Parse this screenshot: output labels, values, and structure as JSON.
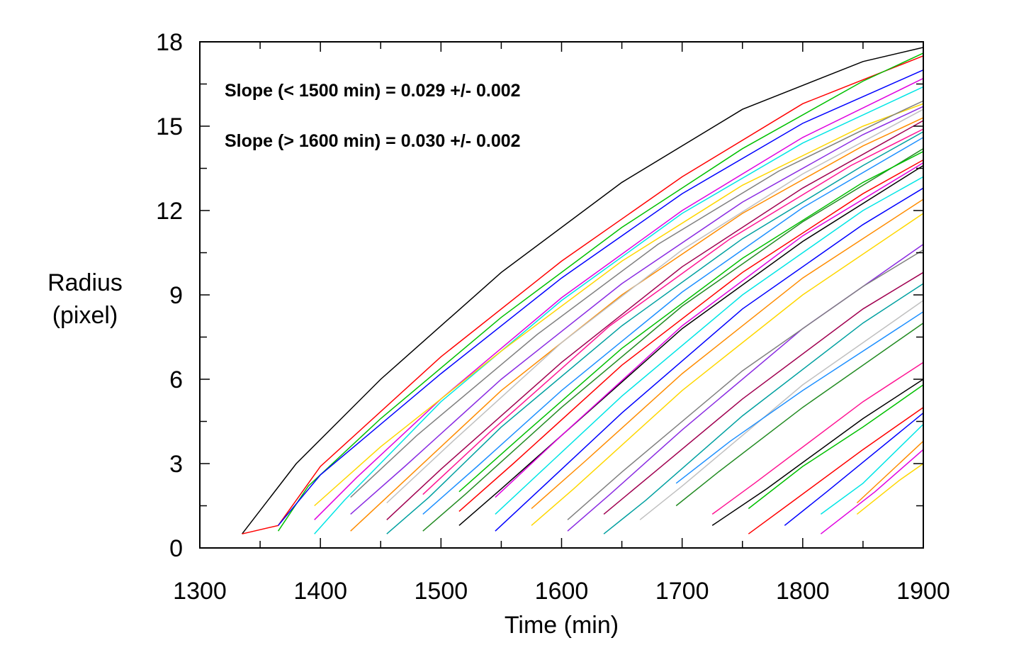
{
  "chart_data": {
    "type": "line",
    "title": "",
    "xlabel": "Time (min)",
    "ylabel_lines": [
      "Radius",
      "(pixel)"
    ],
    "xlim": [
      1300,
      1900
    ],
    "ylim": [
      0,
      18
    ],
    "x_ticks": [
      1300,
      1400,
      1500,
      1600,
      1700,
      1800,
      1900
    ],
    "y_ticks": [
      0,
      3,
      6,
      9,
      12,
      15,
      18
    ],
    "x_minor_step": 50,
    "y_minor_step": 1.5,
    "grid": false,
    "legend": "none",
    "annotations": [
      "Slope (< 1500 min) = 0.029 +/- 0.002",
      "Slope (> 1600 min) = 0.030 +/- 0.002"
    ],
    "palette": [
      "#000000",
      "#ff0000",
      "#00c000",
      "#0000ff",
      "#00e5e5",
      "#e000e0",
      "#ffd700",
      "#ff8c00",
      "#8a2be2",
      "#808080",
      "#00a0a0",
      "#a00050",
      "#c0c0c0",
      "#228b22",
      "#1e90ff",
      "#ff1493"
    ],
    "series_count_note": "",
    "series": [
      {
        "x": [
          1335,
          1380,
          1450,
          1550,
          1650,
          1750,
          1850,
          1900
        ],
        "y": [
          0.5,
          3.0,
          6.0,
          9.8,
          13.0,
          15.6,
          17.3,
          17.8
        ]
      },
      {
        "x": [
          1335,
          1365,
          1400,
          1500,
          1600,
          1700,
          1800,
          1900
        ],
        "y": [
          0.5,
          0.8,
          2.9,
          6.8,
          10.2,
          13.2,
          15.8,
          17.5
        ]
      },
      {
        "x": [
          1365,
          1390,
          1450,
          1550,
          1650,
          1750,
          1850,
          1900
        ],
        "y": [
          0.6,
          2.2,
          4.6,
          8.2,
          11.4,
          14.2,
          16.6,
          17.6
        ]
      },
      {
        "x": [
          1365,
          1400,
          1500,
          1600,
          1700,
          1800,
          1900
        ],
        "y": [
          0.8,
          2.6,
          6.2,
          9.6,
          12.6,
          15.1,
          17.0
        ]
      },
      {
        "x": [
          1395,
          1420,
          1500,
          1600,
          1700,
          1800,
          1900
        ],
        "y": [
          0.5,
          1.7,
          5.2,
          8.8,
          11.9,
          14.4,
          16.4
        ]
      },
      {
        "x": [
          1395,
          1430,
          1500,
          1600,
          1700,
          1800,
          1900
        ],
        "y": [
          1.0,
          2.5,
          5.3,
          8.9,
          12.0,
          14.6,
          16.7
        ]
      },
      {
        "x": [
          1395,
          1450,
          1550,
          1650,
          1750,
          1850,
          1900
        ],
        "y": [
          1.5,
          3.6,
          7.0,
          10.2,
          12.9,
          15.0,
          15.8
        ]
      },
      {
        "x": [
          1425,
          1460,
          1550,
          1650,
          1750,
          1850,
          1900
        ],
        "y": [
          0.6,
          2.0,
          5.6,
          9.0,
          11.9,
          14.3,
          15.3
        ]
      },
      {
        "x": [
          1425,
          1470,
          1550,
          1650,
          1750,
          1850,
          1900
        ],
        "y": [
          1.2,
          2.9,
          6.0,
          9.4,
          12.3,
          14.7,
          15.7
        ]
      },
      {
        "x": [
          1425,
          1480,
          1580,
          1680,
          1780,
          1880,
          1900
        ],
        "y": [
          1.8,
          4.0,
          7.6,
          10.8,
          13.4,
          15.5,
          15.9
        ]
      },
      {
        "x": [
          1455,
          1490,
          1550,
          1650,
          1750,
          1850,
          1900
        ],
        "y": [
          0.5,
          1.8,
          4.3,
          7.9,
          11.0,
          13.6,
          14.8
        ]
      },
      {
        "x": [
          1455,
          1500,
          1600,
          1700,
          1800,
          1900
        ],
        "y": [
          1.0,
          2.8,
          6.6,
          10.0,
          12.8,
          15.2
        ]
      },
      {
        "x": [
          1455,
          1510,
          1600,
          1700,
          1800,
          1900
        ],
        "y": [
          1.6,
          3.8,
          7.3,
          10.6,
          13.3,
          15.6
        ]
      },
      {
        "x": [
          1485,
          1520,
          1600,
          1700,
          1800,
          1900
        ],
        "y": [
          0.6,
          1.9,
          5.0,
          8.6,
          11.6,
          14.2
        ]
      },
      {
        "x": [
          1485,
          1530,
          1600,
          1700,
          1800,
          1900
        ],
        "y": [
          1.2,
          2.9,
          5.6,
          9.1,
          12.1,
          14.6
        ]
      },
      {
        "x": [
          1485,
          1540,
          1640,
          1740,
          1840,
          1900
        ],
        "y": [
          1.9,
          4.1,
          7.9,
          11.0,
          13.6,
          14.9
        ]
      },
      {
        "x": [
          1515,
          1550,
          1600,
          1700,
          1800,
          1900
        ],
        "y": [
          0.8,
          2.1,
          4.0,
          7.8,
          10.9,
          13.6
        ]
      },
      {
        "x": [
          1515,
          1560,
          1650,
          1750,
          1850,
          1900
        ],
        "y": [
          1.3,
          3.0,
          6.5,
          9.8,
          12.6,
          13.8
        ]
      },
      {
        "x": [
          1515,
          1570,
          1650,
          1750,
          1850,
          1900
        ],
        "y": [
          2.0,
          4.1,
          7.1,
          10.3,
          13.0,
          14.1
        ]
      },
      {
        "x": [
          1545,
          1580,
          1650,
          1750,
          1850,
          1900
        ],
        "y": [
          0.6,
          2.0,
          4.8,
          8.5,
          11.5,
          12.8
        ]
      },
      {
        "x": [
          1545,
          1590,
          1650,
          1750,
          1850,
          1900
        ],
        "y": [
          1.2,
          3.0,
          5.4,
          9.0,
          12.0,
          13.2
        ]
      },
      {
        "x": [
          1545,
          1600,
          1700,
          1800,
          1900
        ],
        "y": [
          1.8,
          4.0,
          7.9,
          11.1,
          13.7
        ]
      },
      {
        "x": [
          1575,
          1610,
          1700,
          1800,
          1900
        ],
        "y": [
          0.8,
          2.1,
          5.6,
          9.0,
          11.9
        ]
      },
      {
        "x": [
          1575,
          1620,
          1700,
          1800,
          1900
        ],
        "y": [
          1.4,
          3.1,
          6.2,
          9.6,
          12.4
        ]
      },
      {
        "x": [
          1605,
          1640,
          1700,
          1800,
          1900
        ],
        "y": [
          0.6,
          1.9,
          4.2,
          7.8,
          10.8
        ]
      },
      {
        "x": [
          1605,
          1650,
          1750,
          1850,
          1900
        ],
        "y": [
          1.0,
          2.7,
          6.3,
          9.3,
          10.6
        ]
      },
      {
        "x": [
          1635,
          1670,
          1750,
          1850,
          1900
        ],
        "y": [
          0.5,
          1.7,
          4.7,
          8.0,
          9.4
        ]
      },
      {
        "x": [
          1635,
          1680,
          1750,
          1850,
          1900
        ],
        "y": [
          1.2,
          2.8,
          5.3,
          8.5,
          9.8
        ]
      },
      {
        "x": [
          1665,
          1700,
          1800,
          1900
        ],
        "y": [
          1.0,
          2.2,
          5.8,
          8.8
        ]
      },
      {
        "x": [
          1695,
          1730,
          1800,
          1900
        ],
        "y": [
          1.5,
          2.7,
          5.0,
          8.0
        ]
      },
      {
        "x": [
          1695,
          1740,
          1800,
          1900
        ],
        "y": [
          2.3,
          3.8,
          5.6,
          8.4
        ]
      },
      {
        "x": [
          1725,
          1760,
          1850,
          1900
        ],
        "y": [
          1.2,
          2.3,
          5.2,
          6.6
        ]
      },
      {
        "x": [
          1725,
          1770,
          1850,
          1900
        ],
        "y": [
          0.8,
          2.1,
          4.6,
          6.0
        ]
      },
      {
        "x": [
          1755,
          1790,
          1850,
          1900
        ],
        "y": [
          0.5,
          1.6,
          3.5,
          5.0
        ]
      },
      {
        "x": [
          1755,
          1800,
          1850,
          1900
        ],
        "y": [
          1.4,
          2.9,
          4.3,
          5.8
        ]
      },
      {
        "x": [
          1785,
          1820,
          1900
        ],
        "y": [
          0.8,
          2.0,
          4.8
        ]
      },
      {
        "x": [
          1815,
          1850,
          1900
        ],
        "y": [
          1.2,
          2.3,
          4.4
        ]
      },
      {
        "x": [
          1815,
          1860,
          1900
        ],
        "y": [
          0.5,
          2.0,
          3.5
        ]
      },
      {
        "x": [
          1845,
          1880,
          1900
        ],
        "y": [
          1.2,
          2.4,
          3.0
        ]
      },
      {
        "x": [
          1845,
          1880,
          1900
        ],
        "y": [
          1.6,
          3.0,
          3.8
        ]
      }
    ]
  }
}
